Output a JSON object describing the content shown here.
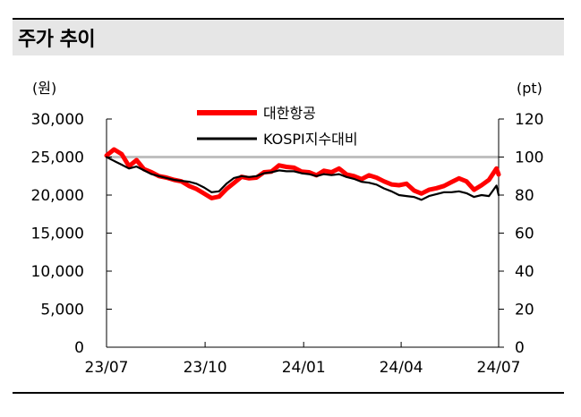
{
  "header": {
    "title": "주가 추이"
  },
  "chart_data": {
    "type": "line",
    "left_unit": "(원)",
    "right_unit": "(pt)",
    "x_ticks": [
      "23/07",
      "23/10",
      "24/01",
      "24/04",
      "24/07"
    ],
    "left_axis": {
      "ticks": [
        "0",
        "5,000",
        "10,000",
        "15,000",
        "20,000",
        "25,000",
        "30,000"
      ],
      "ylim": [
        0,
        30000
      ]
    },
    "right_axis": {
      "ticks": [
        "0",
        "20",
        "40",
        "60",
        "80",
        "100",
        "120"
      ],
      "ylim": [
        0,
        120
      ]
    },
    "reference_line": {
      "axis": "right",
      "value": 100,
      "color": "#bfbfbf"
    },
    "legend_position": "top-center",
    "series": [
      {
        "name": "대한항공",
        "axis": "left",
        "color": "#ff0000",
        "x": [
          "2023-07-01",
          "2023-07-08",
          "2023-07-15",
          "2023-07-22",
          "2023-07-29",
          "2023-08-05",
          "2023-08-12",
          "2023-08-19",
          "2023-08-26",
          "2023-09-02",
          "2023-09-09",
          "2023-09-16",
          "2023-09-23",
          "2023-09-30",
          "2023-10-07",
          "2023-10-14",
          "2023-10-21",
          "2023-10-28",
          "2023-11-04",
          "2023-11-11",
          "2023-11-18",
          "2023-11-25",
          "2023-12-02",
          "2023-12-09",
          "2023-12-16",
          "2023-12-23",
          "2023-12-30",
          "2024-01-06",
          "2024-01-13",
          "2024-01-20",
          "2024-01-27",
          "2024-02-03",
          "2024-02-10",
          "2024-02-17",
          "2024-02-24",
          "2024-03-02",
          "2024-03-09",
          "2024-03-16",
          "2024-03-23",
          "2024-03-30",
          "2024-04-06",
          "2024-04-13",
          "2024-04-20",
          "2024-04-27",
          "2024-05-04",
          "2024-05-11",
          "2024-05-18",
          "2024-05-25",
          "2024-06-01",
          "2024-06-08",
          "2024-06-15",
          "2024-06-22",
          "2024-06-29",
          "2024-07-01"
        ],
        "values": [
          25200,
          26000,
          25400,
          23800,
          24600,
          23400,
          23000,
          22500,
          22300,
          22000,
          21800,
          21200,
          20800,
          20200,
          19600,
          19800,
          20800,
          21600,
          22400,
          22200,
          22300,
          23000,
          23100,
          23900,
          23700,
          23600,
          23100,
          23000,
          22600,
          23200,
          23000,
          23500,
          22700,
          22500,
          22100,
          22600,
          22300,
          21800,
          21400,
          21300,
          21500,
          20600,
          20200,
          20700,
          20900,
          21200,
          21700,
          22200,
          21800,
          20700,
          21300,
          22000,
          23500,
          22700
        ]
      },
      {
        "name": "KOSPI지수대비",
        "axis": "right",
        "color": "#000000",
        "x": [
          "2023-07-01",
          "2023-07-08",
          "2023-07-15",
          "2023-07-22",
          "2023-07-29",
          "2023-08-05",
          "2023-08-12",
          "2023-08-19",
          "2023-08-26",
          "2023-09-02",
          "2023-09-09",
          "2023-09-16",
          "2023-09-23",
          "2023-09-30",
          "2023-10-07",
          "2023-10-14",
          "2023-10-21",
          "2023-10-28",
          "2023-11-04",
          "2023-11-11",
          "2023-11-18",
          "2023-11-25",
          "2023-12-02",
          "2023-12-09",
          "2023-12-16",
          "2023-12-23",
          "2023-12-30",
          "2024-01-06",
          "2024-01-13",
          "2024-01-20",
          "2024-01-27",
          "2024-02-03",
          "2024-02-10",
          "2024-02-17",
          "2024-02-24",
          "2024-03-02",
          "2024-03-09",
          "2024-03-16",
          "2024-03-23",
          "2024-03-30",
          "2024-04-06",
          "2024-04-13",
          "2024-04-20",
          "2024-04-27",
          "2024-05-04",
          "2024-05-11",
          "2024-05-18",
          "2024-05-25",
          "2024-06-01",
          "2024-06-08",
          "2024-06-15",
          "2024-06-22",
          "2024-06-29",
          "2024-07-01"
        ],
        "values": [
          100,
          98,
          96,
          94,
          95,
          93,
          91,
          90,
          89,
          88,
          87.5,
          87,
          86,
          84,
          81.5,
          82,
          86,
          89,
          90,
          89.5,
          90,
          91.5,
          92,
          93,
          92.5,
          92.5,
          91.5,
          91,
          90,
          91,
          90.5,
          91,
          89.5,
          88.5,
          87,
          86.5,
          85.5,
          83.5,
          82,
          80,
          79.5,
          79,
          77.5,
          79.5,
          80.5,
          81.5,
          81.5,
          82,
          81,
          79,
          80,
          79.5,
          85,
          80
        ]
      }
    ]
  }
}
